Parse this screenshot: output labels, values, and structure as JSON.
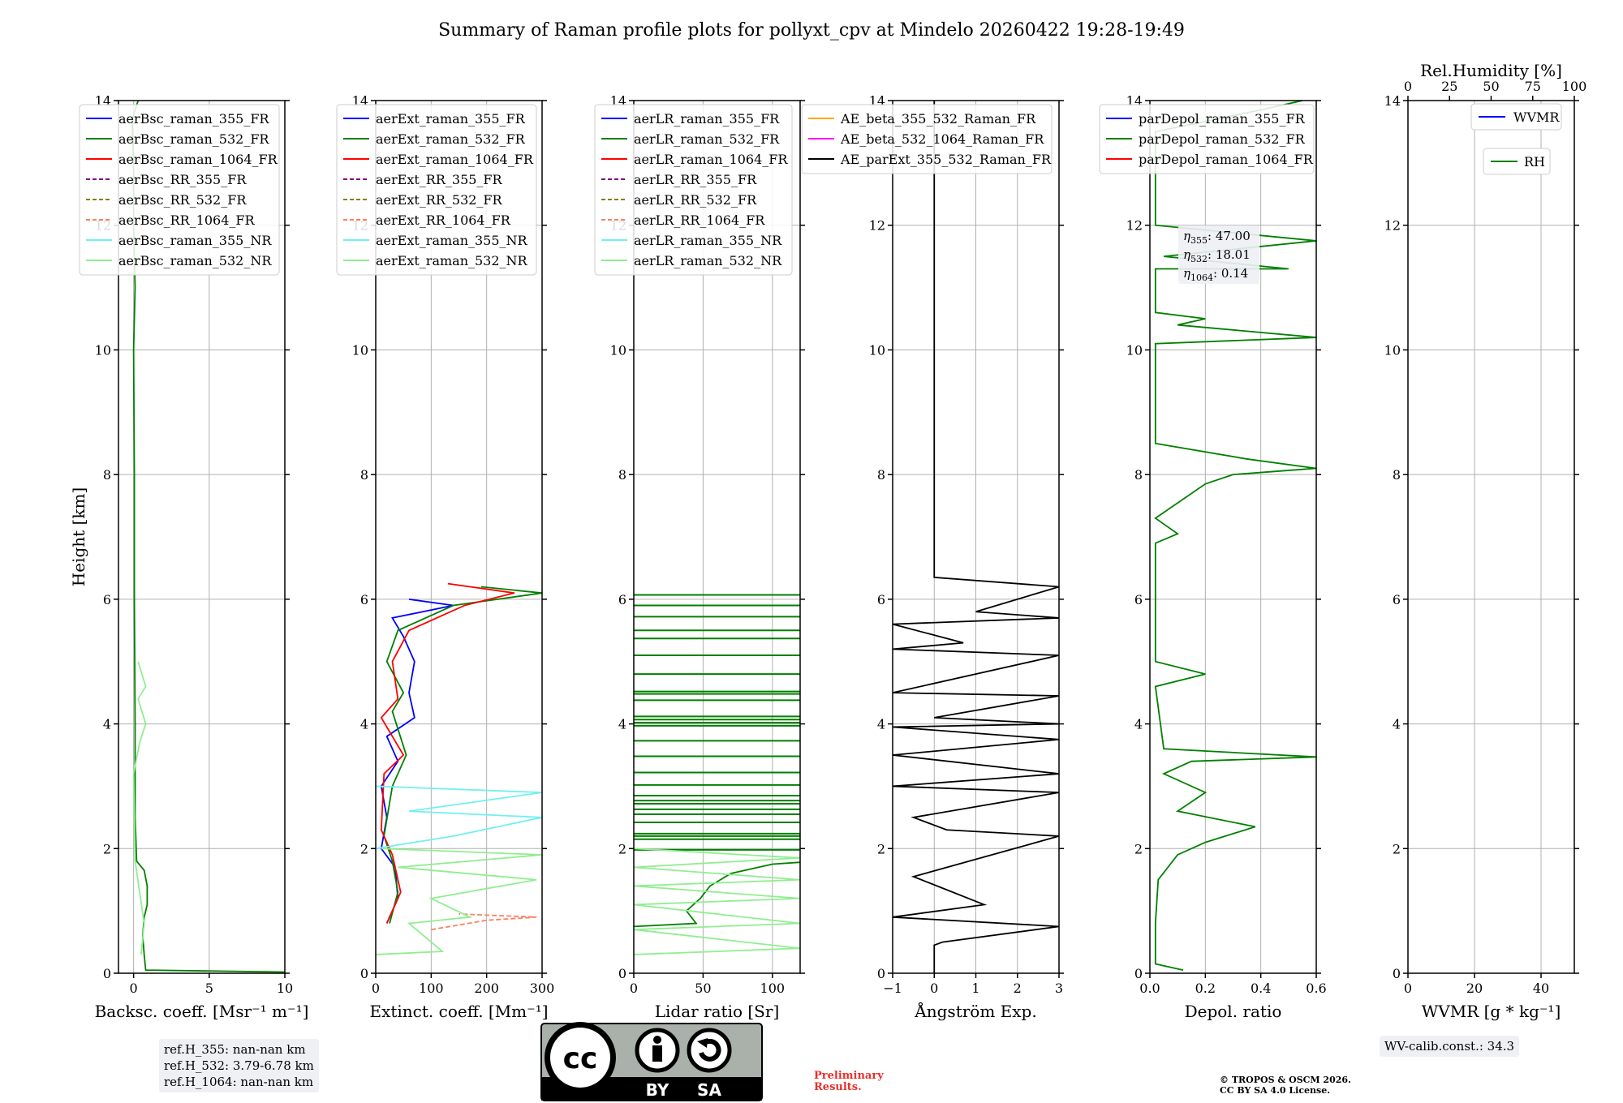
{
  "title": "Summary of Raman profile plots for pollyxt_cpv at Mindelo 20260422 19:28-19:49",
  "colors": {
    "blue": "#0000ff",
    "green": "#008000",
    "red": "#ff0000",
    "purple": "#800080",
    "olive": "#808000",
    "salmon": "#fa8060",
    "cyan": "#70f0f0",
    "lightgreen": "#90ee90",
    "orange": "#ffa500",
    "magenta": "#ff00ff",
    "black": "#000000",
    "grid": "#b0b0b0"
  },
  "chart_data": [
    {
      "type": "line",
      "id": "bsc",
      "xlabel": "Backsc. coeff. [Msr⁻¹ m⁻¹]",
      "ylabel": "Height [km]",
      "xlim": [
        -1,
        10
      ],
      "ylim": [
        0,
        14
      ],
      "xticks": [
        0,
        5,
        10
      ],
      "yticks": [
        0,
        2,
        4,
        6,
        8,
        10,
        12,
        14
      ],
      "legend": [
        "aerBsc_raman_355_FR",
        "aerBsc_raman_532_FR",
        "aerBsc_raman_1064_FR",
        "aerBsc_RR_355_FR",
        "aerBsc_RR_532_FR",
        "aerBsc_RR_1064_FR",
        "aerBsc_raman_355_NR",
        "aerBsc_raman_532_NR"
      ],
      "series": [
        {
          "name": "aerBsc_raman_532_FR",
          "color": "green",
          "points": [
            [
              10,
              0.02
            ],
            [
              0.8,
              0.05
            ],
            [
              0.7,
              0.3
            ],
            [
              0.6,
              0.6
            ],
            [
              0.7,
              0.9
            ],
            [
              0.9,
              1.1
            ],
            [
              0.9,
              1.4
            ],
            [
              0.7,
              1.65
            ],
            [
              0.2,
              1.8
            ],
            [
              0.1,
              2.5
            ],
            [
              0.1,
              4
            ],
            [
              0.05,
              6
            ],
            [
              0.05,
              8
            ],
            [
              0.0,
              10
            ],
            [
              0.1,
              11
            ],
            [
              0.0,
              12
            ],
            [
              0.0,
              13
            ],
            [
              -0.1,
              13.7
            ],
            [
              0.3,
              14
            ]
          ]
        },
        {
          "name": "aerBsc_raman_532_NR",
          "color": "lightgreen",
          "points": [
            [
              0.5,
              0.3
            ],
            [
              0.7,
              0.8
            ],
            [
              0.4,
              1.3
            ],
            [
              0.1,
              1.8
            ],
            [
              0.0,
              3.2
            ],
            [
              0.4,
              3.7
            ],
            [
              0.8,
              4.0
            ],
            [
              0.3,
              4.4
            ],
            [
              0.8,
              4.6
            ],
            [
              0.3,
              5.0
            ]
          ]
        }
      ]
    },
    {
      "type": "line",
      "id": "ext",
      "xlabel": "Extinct. coeff. [Mm⁻¹]",
      "xlim": [
        0,
        300
      ],
      "ylim": [
        0,
        14
      ],
      "xticks": [
        0,
        100,
        200,
        300
      ],
      "yticks": [
        0,
        2,
        4,
        6,
        8,
        10,
        12,
        14
      ],
      "legend": [
        "aerExt_raman_355_FR",
        "aerExt_raman_532_FR",
        "aerExt_raman_1064_FR",
        "aerExt_RR_355_FR",
        "aerExt_RR_532_FR",
        "aerExt_RR_1064_FR",
        "aerExt_raman_355_NR",
        "aerExt_raman_532_NR"
      ],
      "series": [
        {
          "name": "aerExt_raman_355_FR",
          "color": "blue",
          "points": [
            [
              20,
              0.8
            ],
            [
              40,
              1.2
            ],
            [
              35,
              1.7
            ],
            [
              10,
              2.0
            ],
            [
              20,
              2.5
            ],
            [
              10,
              3.0
            ],
            [
              40,
              3.4
            ],
            [
              20,
              3.8
            ],
            [
              70,
              4.1
            ],
            [
              60,
              4.5
            ],
            [
              70,
              5.0
            ],
            [
              50,
              5.4
            ],
            [
              30,
              5.7
            ],
            [
              140,
              5.9
            ],
            [
              60,
              6.0
            ]
          ]
        },
        {
          "name": "aerExt_raman_532_FR",
          "color": "green",
          "points": [
            [
              25,
              0.8
            ],
            [
              40,
              1.3
            ],
            [
              30,
              1.8
            ],
            [
              15,
              2.2
            ],
            [
              30,
              3.0
            ],
            [
              55,
              3.5
            ],
            [
              30,
              4.2
            ],
            [
              50,
              4.5
            ],
            [
              20,
              5.0
            ],
            [
              40,
              5.5
            ],
            [
              140,
              5.9
            ],
            [
              300,
              6.1
            ],
            [
              190,
              6.2
            ]
          ]
        },
        {
          "name": "aerExt_raman_1064_FR",
          "color": "red",
          "points": [
            [
              20,
              0.8
            ],
            [
              45,
              1.3
            ],
            [
              30,
              1.9
            ],
            [
              10,
              2.3
            ],
            [
              15,
              3.2
            ],
            [
              50,
              3.5
            ],
            [
              10,
              4.1
            ],
            [
              40,
              4.4
            ],
            [
              30,
              5.0
            ],
            [
              60,
              5.5
            ],
            [
              160,
              5.9
            ],
            [
              250,
              6.1
            ],
            [
              130,
              6.25
            ]
          ]
        },
        {
          "name": "aerExt_RR_1064_FR",
          "color": "salmon",
          "dash": true,
          "points": [
            [
              100,
              0.7
            ],
            [
              200,
              0.85
            ],
            [
              290,
              0.9
            ],
            [
              150,
              0.95
            ]
          ]
        },
        {
          "name": "aerExt_raman_355_NR",
          "color": "cyan",
          "points": [
            [
              0,
              2.0
            ],
            [
              140,
              2.2
            ],
            [
              300,
              2.5
            ],
            [
              60,
              2.6
            ],
            [
              300,
              2.9
            ],
            [
              0,
              3.0
            ]
          ]
        },
        {
          "name": "aerExt_raman_532_NR",
          "color": "lightgreen",
          "points": [
            [
              0,
              0.3
            ],
            [
              120,
              0.35
            ],
            [
              60,
              0.8
            ],
            [
              170,
              0.9
            ],
            [
              100,
              1.2
            ],
            [
              290,
              1.5
            ],
            [
              40,
              1.7
            ],
            [
              300,
              1.9
            ],
            [
              10,
              2.0
            ]
          ]
        }
      ]
    },
    {
      "type": "line",
      "id": "lr",
      "xlabel": "Lidar ratio [Sr]",
      "xlim": [
        0,
        120
      ],
      "ylim": [
        0,
        14
      ],
      "xticks": [
        0,
        50,
        100
      ],
      "yticks": [
        0,
        2,
        4,
        6,
        8,
        10,
        12,
        14
      ],
      "legend": [
        "aerLR_raman_355_FR",
        "aerLR_raman_532_FR",
        "aerLR_raman_1064_FR",
        "aerLR_RR_355_FR",
        "aerLR_RR_532_FR",
        "aerLR_RR_1064_FR",
        "aerLR_raman_355_NR",
        "aerLR_raman_532_NR"
      ],
      "hlines": {
        "color": "green",
        "xmax": 120,
        "y": [
          6.07,
          5.9,
          5.72,
          5.5,
          5.37,
          5.1,
          4.8,
          4.52,
          4.48,
          4.38,
          4.12,
          4.07,
          4.02,
          3.97,
          3.73,
          3.48,
          3.22,
          3.02,
          2.85,
          2.77,
          2.72,
          2.63,
          2.55,
          2.42,
          2.24,
          2.2,
          2.15,
          1.98
        ]
      },
      "series": [
        {
          "name": "aerLR_raman_532_FR",
          "color": "green",
          "points": [
            [
              0,
              0.75
            ],
            [
              45,
              0.8
            ],
            [
              38,
              1.0
            ],
            [
              48,
              1.2
            ],
            [
              55,
              1.4
            ],
            [
              70,
              1.6
            ],
            [
              100,
              1.75
            ],
            [
              120,
              1.78
            ]
          ]
        },
        {
          "name": "aerLR_raman_532_NR",
          "color": "lightgreen",
          "points": [
            [
              0,
              0.3
            ],
            [
              120,
              0.4
            ],
            [
              0,
              0.7
            ],
            [
              120,
              0.8
            ],
            [
              0,
              1.1
            ],
            [
              120,
              1.2
            ],
            [
              0,
              1.4
            ],
            [
              120,
              1.5
            ],
            [
              0,
              1.7
            ],
            [
              120,
              1.85
            ],
            [
              0,
              2.0
            ]
          ]
        }
      ]
    },
    {
      "type": "line",
      "id": "ae",
      "xlabel": "Ångström Exp.",
      "xlim": [
        -1,
        3
      ],
      "ylim": [
        0,
        14
      ],
      "xticks": [
        -1,
        0,
        1,
        2,
        3
      ],
      "yticks": [
        0,
        2,
        4,
        6,
        8,
        10,
        12,
        14
      ],
      "legend": [
        "AE_beta_355_532_Raman_FR",
        "AE_beta_532_1064_Raman_FR",
        "AE_parExt_355_532_Raman_FR"
      ],
      "series": [
        {
          "name": "AE_parExt_355_532_Raman_FR",
          "color": "black",
          "points": [
            [
              0,
              14
            ],
            [
              0,
              6.35
            ],
            [
              3,
              6.2
            ],
            [
              1.0,
              5.8
            ],
            [
              3,
              5.7
            ],
            [
              -1,
              5.6
            ],
            [
              0.7,
              5.3
            ],
            [
              -1,
              5.2
            ],
            [
              3,
              5.1
            ],
            [
              -1,
              4.5
            ],
            [
              3,
              4.45
            ],
            [
              0,
              4.1
            ],
            [
              3,
              4.0
            ],
            [
              -1,
              3.95
            ],
            [
              3,
              3.75
            ],
            [
              -1,
              3.5
            ],
            [
              3,
              3.2
            ],
            [
              -1,
              3.0
            ],
            [
              3,
              2.9
            ],
            [
              -0.5,
              2.5
            ],
            [
              0.3,
              2.3
            ],
            [
              3,
              2.2
            ],
            [
              -0.5,
              1.55
            ],
            [
              1.2,
              1.1
            ],
            [
              -1,
              0.9
            ],
            [
              3,
              0.75
            ],
            [
              0.2,
              0.5
            ],
            [
              0,
              0.45
            ],
            [
              0,
              0
            ]
          ]
        }
      ]
    },
    {
      "type": "line",
      "id": "depol",
      "xlabel": "Depol. ratio",
      "xlim": [
        0,
        0.6
      ],
      "ylim": [
        0,
        14
      ],
      "xticks": [
        0,
        0.2,
        0.4,
        0.6
      ],
      "xticklabels": [
        "0.0",
        "0.2",
        "0.4",
        "0.6"
      ],
      "yticks": [
        0,
        2,
        4,
        6,
        8,
        10,
        12,
        14
      ],
      "legend": [
        "parDepol_raman_355_FR",
        "parDepol_raman_532_FR",
        "parDepol_raman_1064_FR"
      ],
      "eta": [
        "47.00",
        "18.01",
        "0.14"
      ],
      "series": [
        {
          "name": "parDepol_raman_532_FR",
          "color": "green",
          "points": [
            [
              0.12,
              0.05
            ],
            [
              0.02,
              0.15
            ],
            [
              0.02,
              0.8
            ],
            [
              0.03,
              1.5
            ],
            [
              0.1,
              1.9
            ],
            [
              0.2,
              2.1
            ],
            [
              0.38,
              2.35
            ],
            [
              0.1,
              2.6
            ],
            [
              0.2,
              2.9
            ],
            [
              0.05,
              3.2
            ],
            [
              0.15,
              3.4
            ],
            [
              0.6,
              3.47
            ],
            [
              0.05,
              3.6
            ],
            [
              0.02,
              4.6
            ],
            [
              0.2,
              4.8
            ],
            [
              0.02,
              5.0
            ],
            [
              0.02,
              6.9
            ],
            [
              0.1,
              7.05
            ],
            [
              0.02,
              7.3
            ],
            [
              0.2,
              7.85
            ],
            [
              0.3,
              8.0
            ],
            [
              0.6,
              8.1
            ],
            [
              0.35,
              8.25
            ],
            [
              0.02,
              8.5
            ],
            [
              0.02,
              10.1
            ],
            [
              0.6,
              10.2
            ],
            [
              0.1,
              10.4
            ],
            [
              0.2,
              10.5
            ],
            [
              0.02,
              10.6
            ],
            [
              0.02,
              11.3
            ],
            [
              0.5,
              11.3
            ],
            [
              0.05,
              11.5
            ],
            [
              0.6,
              11.75
            ],
            [
              0.02,
              12.0
            ],
            [
              0.02,
              13.5
            ],
            [
              0.4,
              13.85
            ],
            [
              0.55,
              14.0
            ]
          ]
        }
      ]
    },
    {
      "type": "line",
      "id": "wv",
      "xlabel": "WVMR [g * kg⁻¹]",
      "xlim": [
        0,
        50
      ],
      "ylim": [
        0,
        14
      ],
      "xticks": [
        0,
        20,
        40
      ],
      "yticks": [
        0,
        2,
        4,
        6,
        8,
        10,
        12,
        14
      ],
      "top_axis_label": "Rel.Humidity [%]",
      "top_xticks": [
        0,
        25,
        50,
        75,
        100
      ],
      "legend": [
        "WVMR",
        "RH"
      ],
      "series": []
    }
  ],
  "ref_box": [
    "ref.H_355: nan-nan km",
    "ref.H_532: 3.79-6.78 km",
    "ref.H_1064: nan-nan km"
  ],
  "license_badge": {
    "top_left": "cc",
    "by": "BY",
    "sa": "SA"
  },
  "preliminary": [
    "Preliminary",
    "Results."
  ],
  "copyright": [
    "© TROPOS & OSCM 2026.",
    "CC BY SA 4.0 License."
  ],
  "wv_calib": "WV-calib.const.: 34.3"
}
